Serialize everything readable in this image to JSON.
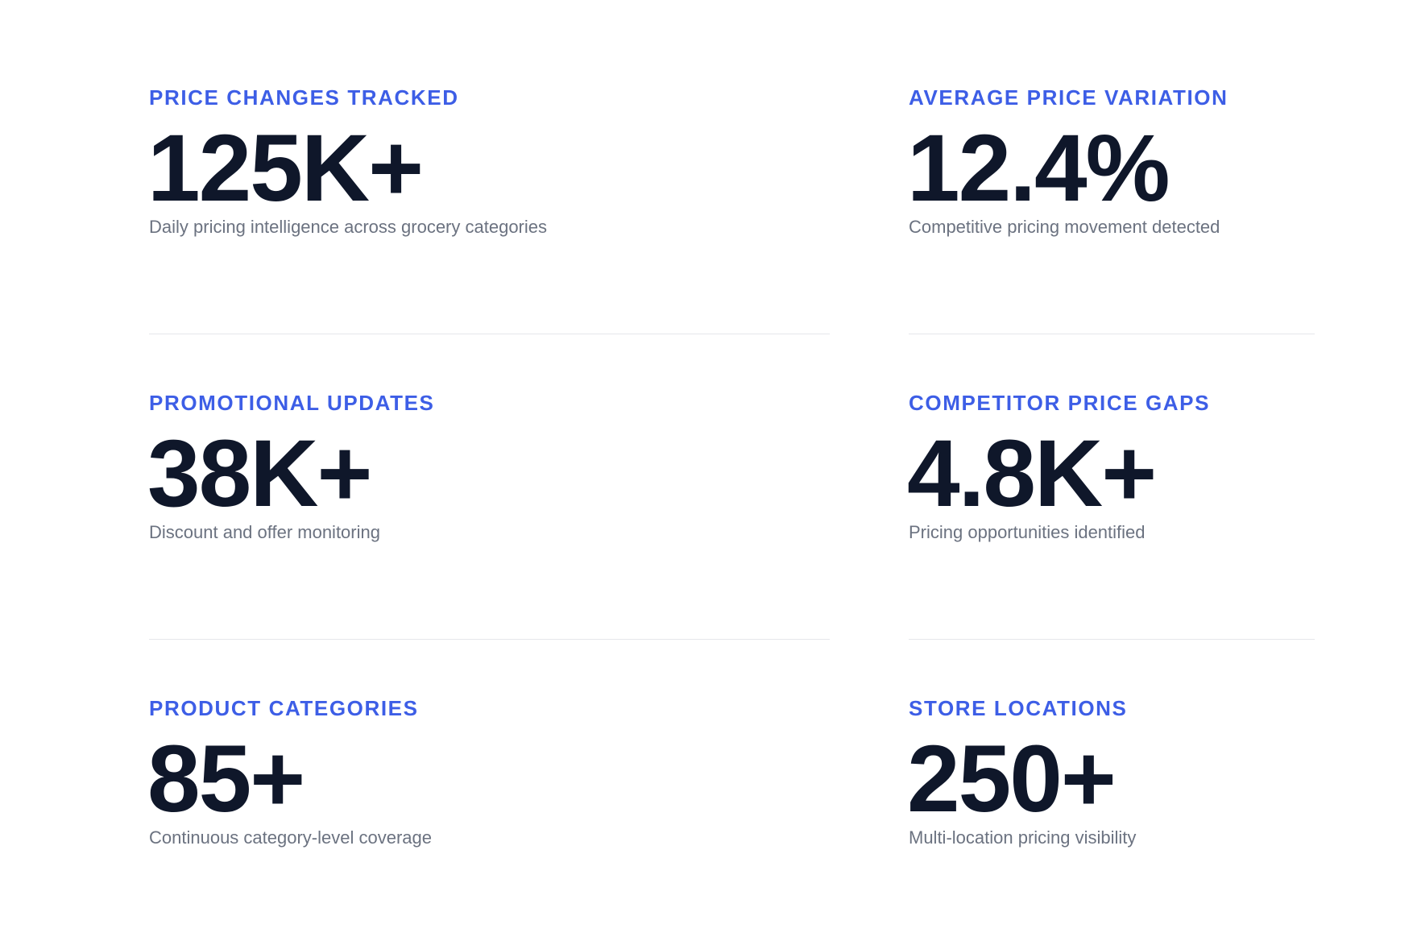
{
  "stats": [
    {
      "label": "PRICE CHANGES TRACKED",
      "value": "125K+",
      "description": "Daily pricing intelligence across grocery categories"
    },
    {
      "label": "AVERAGE PRICE VARIATION",
      "value": "12.4%",
      "description": "Competitive pricing movement detected"
    },
    {
      "label": "PROMOTIONAL UPDATES",
      "value": "38K+",
      "description": "Discount and offer monitoring"
    },
    {
      "label": "COMPETITOR PRICE GAPS",
      "value": "4.8K+",
      "description": "Pricing opportunities identified"
    },
    {
      "label": "PRODUCT CATEGORIES",
      "value": "85+",
      "description": "Continuous category-level coverage"
    },
    {
      "label": "STORE LOCATIONS",
      "value": "250+",
      "description": "Multi-location pricing visibility"
    }
  ]
}
